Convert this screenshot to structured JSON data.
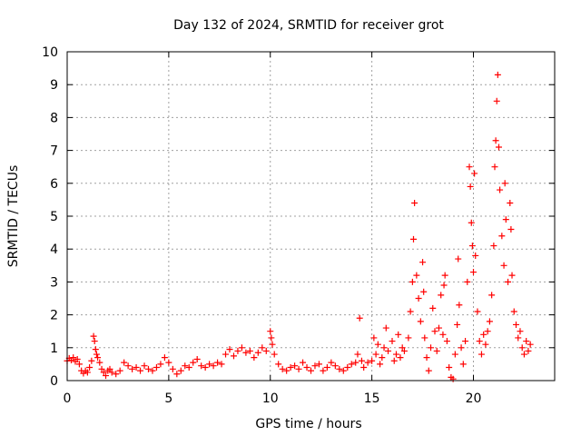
{
  "chart_data": {
    "type": "scatter",
    "title": "Day 132 of 2024, SRMTID for receiver grot",
    "xlabel": "GPS time / hours",
    "ylabel": "SRMTID / TECUs",
    "xlim": [
      0,
      24
    ],
    "ylim": [
      0,
      10
    ],
    "xticks": [
      0,
      5,
      10,
      15,
      20
    ],
    "yticks": [
      0,
      1,
      2,
      3,
      4,
      5,
      6,
      7,
      8,
      9,
      10
    ],
    "grid": true,
    "marker": "+",
    "marker_color": "#ff0000",
    "series": [
      {
        "name": "SRMTID",
        "points": [
          [
            0.0,
            0.6
          ],
          [
            0.1,
            0.68
          ],
          [
            0.2,
            0.62
          ],
          [
            0.3,
            0.7
          ],
          [
            0.4,
            0.58
          ],
          [
            0.5,
            0.65
          ],
          [
            0.6,
            0.5
          ],
          [
            0.7,
            0.3
          ],
          [
            0.8,
            0.22
          ],
          [
            0.9,
            0.3
          ],
          [
            1.0,
            0.25
          ],
          [
            1.1,
            0.4
          ],
          [
            1.2,
            0.6
          ],
          [
            1.3,
            1.35
          ],
          [
            1.35,
            1.2
          ],
          [
            1.4,
            0.95
          ],
          [
            1.45,
            0.8
          ],
          [
            1.5,
            0.7
          ],
          [
            1.6,
            0.55
          ],
          [
            1.7,
            0.35
          ],
          [
            1.8,
            0.25
          ],
          [
            1.9,
            0.15
          ],
          [
            2.0,
            0.3
          ],
          [
            2.1,
            0.35
          ],
          [
            2.2,
            0.25
          ],
          [
            2.4,
            0.2
          ],
          [
            2.6,
            0.3
          ],
          [
            2.8,
            0.55
          ],
          [
            3.0,
            0.45
          ],
          [
            3.2,
            0.35
          ],
          [
            3.4,
            0.4
          ],
          [
            3.6,
            0.3
          ],
          [
            3.8,
            0.45
          ],
          [
            4.0,
            0.35
          ],
          [
            4.2,
            0.3
          ],
          [
            4.4,
            0.4
          ],
          [
            4.6,
            0.5
          ],
          [
            4.8,
            0.7
          ],
          [
            5.0,
            0.55
          ],
          [
            5.2,
            0.35
          ],
          [
            5.4,
            0.2
          ],
          [
            5.6,
            0.3
          ],
          [
            5.8,
            0.45
          ],
          [
            6.0,
            0.4
          ],
          [
            6.2,
            0.55
          ],
          [
            6.4,
            0.65
          ],
          [
            6.6,
            0.45
          ],
          [
            6.8,
            0.4
          ],
          [
            7.0,
            0.5
          ],
          [
            7.2,
            0.45
          ],
          [
            7.4,
            0.55
          ],
          [
            7.6,
            0.5
          ],
          [
            7.8,
            0.8
          ],
          [
            8.0,
            0.95
          ],
          [
            8.2,
            0.75
          ],
          [
            8.4,
            0.9
          ],
          [
            8.6,
            1.0
          ],
          [
            8.8,
            0.85
          ],
          [
            9.0,
            0.9
          ],
          [
            9.2,
            0.7
          ],
          [
            9.4,
            0.85
          ],
          [
            9.6,
            1.0
          ],
          [
            9.8,
            0.9
          ],
          [
            10.0,
            1.5
          ],
          [
            10.05,
            1.3
          ],
          [
            10.1,
            1.1
          ],
          [
            10.2,
            0.8
          ],
          [
            10.4,
            0.5
          ],
          [
            10.6,
            0.35
          ],
          [
            10.8,
            0.3
          ],
          [
            11.0,
            0.4
          ],
          [
            11.2,
            0.45
          ],
          [
            11.4,
            0.35
          ],
          [
            11.6,
            0.55
          ],
          [
            11.8,
            0.4
          ],
          [
            12.0,
            0.3
          ],
          [
            12.2,
            0.45
          ],
          [
            12.4,
            0.5
          ],
          [
            12.6,
            0.3
          ],
          [
            12.8,
            0.4
          ],
          [
            13.0,
            0.55
          ],
          [
            13.2,
            0.45
          ],
          [
            13.4,
            0.35
          ],
          [
            13.6,
            0.3
          ],
          [
            13.8,
            0.4
          ],
          [
            14.0,
            0.5
          ],
          [
            14.2,
            0.55
          ],
          [
            14.3,
            0.8
          ],
          [
            14.4,
            1.9
          ],
          [
            14.5,
            0.6
          ],
          [
            14.6,
            0.4
          ],
          [
            14.8,
            0.55
          ],
          [
            15.0,
            0.6
          ],
          [
            15.1,
            1.3
          ],
          [
            15.2,
            0.8
          ],
          [
            15.3,
            1.1
          ],
          [
            15.4,
            0.5
          ],
          [
            15.5,
            0.7
          ],
          [
            15.6,
            1.0
          ],
          [
            15.7,
            1.6
          ],
          [
            15.8,
            0.9
          ],
          [
            16.0,
            1.2
          ],
          [
            16.1,
            0.6
          ],
          [
            16.2,
            0.8
          ],
          [
            16.3,
            1.4
          ],
          [
            16.4,
            0.7
          ],
          [
            16.5,
            1.0
          ],
          [
            16.6,
            0.9
          ],
          [
            16.8,
            1.3
          ],
          [
            16.9,
            2.1
          ],
          [
            17.0,
            3.0
          ],
          [
            17.05,
            4.3
          ],
          [
            17.1,
            5.4
          ],
          [
            17.2,
            3.2
          ],
          [
            17.3,
            2.5
          ],
          [
            17.4,
            1.8
          ],
          [
            17.5,
            3.6
          ],
          [
            17.55,
            2.7
          ],
          [
            17.6,
            1.3
          ],
          [
            17.7,
            0.7
          ],
          [
            17.8,
            0.3
          ],
          [
            17.9,
            1.0
          ],
          [
            18.0,
            2.2
          ],
          [
            18.1,
            1.5
          ],
          [
            18.2,
            0.9
          ],
          [
            18.3,
            1.6
          ],
          [
            18.4,
            2.6
          ],
          [
            18.5,
            1.4
          ],
          [
            18.55,
            2.9
          ],
          [
            18.6,
            3.2
          ],
          [
            18.7,
            1.2
          ],
          [
            18.8,
            0.4
          ],
          [
            18.9,
            0.1
          ],
          [
            19.0,
            0.05
          ],
          [
            19.1,
            0.8
          ],
          [
            19.2,
            1.7
          ],
          [
            19.25,
            3.7
          ],
          [
            19.3,
            2.3
          ],
          [
            19.4,
            1.0
          ],
          [
            19.5,
            0.5
          ],
          [
            19.6,
            1.2
          ],
          [
            19.7,
            3.0
          ],
          [
            19.8,
            6.5
          ],
          [
            19.85,
            5.9
          ],
          [
            19.9,
            4.8
          ],
          [
            19.95,
            4.1
          ],
          [
            20.0,
            3.3
          ],
          [
            20.05,
            6.3
          ],
          [
            20.1,
            3.8
          ],
          [
            20.2,
            2.1
          ],
          [
            20.3,
            1.2
          ],
          [
            20.4,
            0.8
          ],
          [
            20.5,
            1.4
          ],
          [
            20.6,
            1.1
          ],
          [
            20.7,
            1.5
          ],
          [
            20.8,
            1.8
          ],
          [
            20.9,
            2.6
          ],
          [
            21.0,
            4.1
          ],
          [
            21.05,
            6.5
          ],
          [
            21.1,
            7.3
          ],
          [
            21.15,
            8.5
          ],
          [
            21.2,
            9.3
          ],
          [
            21.25,
            7.1
          ],
          [
            21.3,
            5.8
          ],
          [
            21.4,
            4.4
          ],
          [
            21.5,
            3.5
          ],
          [
            21.55,
            6.0
          ],
          [
            21.6,
            4.9
          ],
          [
            21.7,
            3.0
          ],
          [
            21.8,
            5.4
          ],
          [
            21.85,
            4.6
          ],
          [
            21.9,
            3.2
          ],
          [
            22.0,
            2.1
          ],
          [
            22.1,
            1.7
          ],
          [
            22.2,
            1.3
          ],
          [
            22.3,
            1.5
          ],
          [
            22.4,
            1.0
          ],
          [
            22.5,
            0.8
          ],
          [
            22.6,
            1.2
          ],
          [
            22.7,
            0.9
          ],
          [
            22.8,
            1.1
          ]
        ]
      }
    ]
  }
}
